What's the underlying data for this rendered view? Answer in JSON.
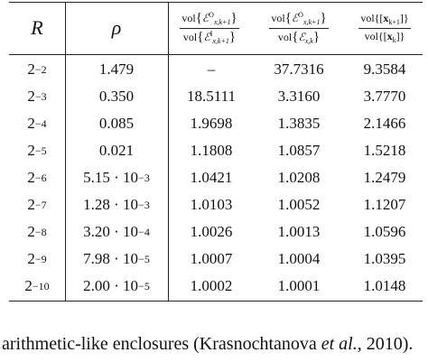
{
  "table": {
    "headers": {
      "r": "R",
      "rho": "ρ",
      "col3": {
        "num_sup": "O",
        "den_sup": "I"
      },
      "col4": {
        "num_sup": "O",
        "den_sub": "x,k"
      },
      "col5": {
        "num": "vol{[x",
        "num_sub": "k+1",
        "num_tail": "]}",
        "den": "vol{[x",
        "den_sub": "k",
        "den_tail": "]}"
      }
    },
    "rows": [
      {
        "r_base": "2",
        "r_exp": "−2",
        "rho": "1.479",
        "c3": "–",
        "c4": "37.7316",
        "c5": "9.3584"
      },
      {
        "r_base": "2",
        "r_exp": "−3",
        "rho": "0.350",
        "c3": "18.5111",
        "c4": "3.3160",
        "c5": "3.7770"
      },
      {
        "r_base": "2",
        "r_exp": "−4",
        "rho": "0.085",
        "c3": "1.9698",
        "c4": "1.3835",
        "c5": "2.1466"
      },
      {
        "r_base": "2",
        "r_exp": "−5",
        "rho": "0.021",
        "c3": "1.1808",
        "c4": "1.0857",
        "c5": "1.5218"
      },
      {
        "r_base": "2",
        "r_exp": "−6",
        "rho": "5.15 · 10",
        "rho_exp": "−3",
        "c3": "1.0421",
        "c4": "1.0208",
        "c5": "1.2479"
      },
      {
        "r_base": "2",
        "r_exp": "−7",
        "rho": "1.28 · 10",
        "rho_exp": "−3",
        "c3": "1.0103",
        "c4": "1.0052",
        "c5": "1.1207"
      },
      {
        "r_base": "2",
        "r_exp": "−8",
        "rho": "3.20 · 10",
        "rho_exp": "−4",
        "c3": "1.0026",
        "c4": "1.0013",
        "c5": "1.0596"
      },
      {
        "r_base": "2",
        "r_exp": "−9",
        "rho": "7.98 · 10",
        "rho_exp": "−5",
        "c3": "1.0007",
        "c4": "1.0004",
        "c5": "1.0395"
      },
      {
        "r_base": "2",
        "r_exp": "−10",
        "rho": "2.00 · 10",
        "rho_exp": "−5",
        "c3": "1.0002",
        "c4": "1.0001",
        "c5": "1.0148"
      }
    ]
  },
  "caption": {
    "before": "arithmetic-like enclosures (Krasnochtanova ",
    "em": "et al.",
    "after": ", 2010)."
  }
}
